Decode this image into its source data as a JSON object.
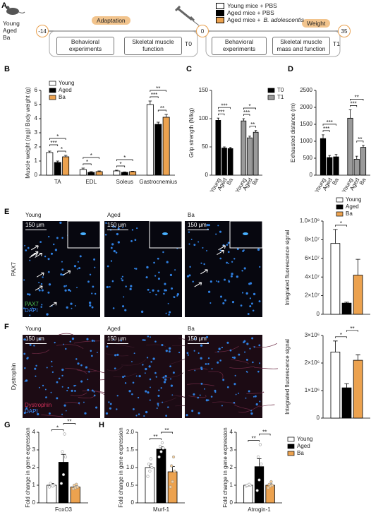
{
  "panel_labels": [
    "A",
    "B",
    "C",
    "D",
    "E",
    "F",
    "G",
    "H"
  ],
  "timeline": {
    "groups": [
      "Young",
      "Aged",
      "Ba"
    ],
    "days": [
      "-14",
      "0",
      "35"
    ],
    "phases": [
      "Adaptation",
      "Weight"
    ],
    "steps": [
      "Behavioral experiments",
      "Skeletal muscle function",
      "Behavioral experiments",
      "Skeletal muscle mass and function"
    ],
    "timepoints": [
      "T0",
      "T1"
    ],
    "legend": [
      {
        "text": "Young mice + PBS",
        "color": "#ffffff"
      },
      {
        "text": "Aged mice + PBS",
        "color": "#000000"
      },
      {
        "text": "Aged mice +",
        "italic": "B. adolescentis",
        "color": "#eca24f"
      }
    ]
  },
  "images": {
    "columns": [
      "Young",
      "Aged",
      "Ba"
    ],
    "scale": "150 μm",
    "rows": [
      {
        "label": "PAX7",
        "channels": [
          "PAX7",
          "DAPI"
        ]
      },
      {
        "label": "Dystrophin",
        "channels": [
          "Dystrophin",
          "DAPI"
        ]
      }
    ]
  },
  "chart_data": [
    {
      "type": "bar",
      "ylabel": "Muscle weight (mg)/ Body weight (g)",
      "categories": [
        "TA",
        "EDL",
        "Soleus",
        "Gastrocnemius"
      ],
      "series": [
        {
          "name": "Young",
          "color": "#ffffff",
          "values": [
            1.6,
            0.4,
            0.3,
            5.0
          ],
          "errors": [
            0.1,
            0.1,
            0.05,
            0.25
          ]
        },
        {
          "name": "Aged",
          "color": "#000000",
          "values": [
            0.9,
            0.2,
            0.2,
            3.6
          ],
          "errors": [
            0.1,
            0.05,
            0.03,
            0.15
          ]
        },
        {
          "name": "Ba",
          "color": "#eca24f",
          "values": [
            1.3,
            0.25,
            0.25,
            4.1
          ],
          "errors": [
            0.1,
            0.05,
            0.03,
            0.2
          ]
        }
      ],
      "ylim": [
        0,
        6
      ],
      "yticks": [
        0,
        1,
        2,
        3,
        4,
        5,
        6
      ],
      "legend": "upper left",
      "significance": [
        {
          "label": "*",
          "from": [
            "Aged",
            "TA"
          ],
          "to": [
            "Ba",
            "TA"
          ]
        },
        {
          "label": "***",
          "from": [
            "Young",
            "TA"
          ],
          "to": [
            "Aged",
            "TA"
          ]
        },
        {
          "label": "*",
          "from": [
            "Young",
            "TA"
          ],
          "to": [
            "Ba",
            "TA"
          ]
        },
        {
          "label": "*",
          "from": [
            "Young",
            "EDL"
          ],
          "to": [
            "Aged",
            "EDL"
          ]
        },
        {
          "label": "*",
          "from": [
            "Young",
            "EDL"
          ],
          "to": [
            "Ba",
            "EDL"
          ]
        },
        {
          "label": "*",
          "from": [
            "Young",
            "Soleus"
          ],
          "to": [
            "Aged",
            "Soleus"
          ]
        },
        {
          "label": "*",
          "from": [
            "Young",
            "Soleus"
          ],
          "to": [
            "Ba",
            "Soleus"
          ]
        },
        {
          "label": "**",
          "from": [
            "Aged",
            "Gastrocnemius"
          ],
          "to": [
            "Ba",
            "Gastrocnemius"
          ]
        },
        {
          "label": "***",
          "from": [
            "Young",
            "Gastrocnemius"
          ],
          "to": [
            "Aged",
            "Gastrocnemius"
          ]
        },
        {
          "label": "**",
          "from": [
            "Young",
            "Gastrocnemius"
          ],
          "to": [
            "Ba",
            "Gastrocnemius"
          ]
        }
      ]
    },
    {
      "type": "bar",
      "ylabel": "Grip strength (N/kg)",
      "categories": [
        "Young",
        "Aged",
        "Ba"
      ],
      "series": [
        {
          "name": "T0",
          "color": "#000000",
          "values": [
            97,
            48,
            47
          ],
          "errors": [
            4,
            2,
            2
          ]
        },
        {
          "name": "T1",
          "color": "#9a9a9a",
          "values": [
            96,
            66,
            76
          ],
          "errors": [
            4,
            3,
            3
          ]
        }
      ],
      "ylim": [
        0,
        150
      ],
      "yticks": [
        0,
        50,
        100,
        150
      ],
      "legend": "upper right",
      "significance": [
        {
          "label": "***",
          "from": [
            "T0",
            "Young"
          ],
          "to": [
            "T0",
            "Aged"
          ]
        },
        {
          "label": "***",
          "from": [
            "T0",
            "Young"
          ],
          "to": [
            "T0",
            "Ba"
          ]
        },
        {
          "label": "**",
          "from": [
            "T1",
            "Aged"
          ],
          "to": [
            "T1",
            "Ba"
          ]
        },
        {
          "label": "***",
          "from": [
            "T1",
            "Young"
          ],
          "to": [
            "T1",
            "Aged"
          ]
        },
        {
          "label": "*",
          "from": [
            "T1",
            "Young"
          ],
          "to": [
            "T1",
            "Ba"
          ]
        }
      ]
    },
    {
      "type": "bar",
      "ylabel": "Exhausted distance (m)",
      "categories": [
        "Young",
        "Aged",
        "Ba"
      ],
      "series": [
        {
          "name": "T0",
          "color": "#000000",
          "values": [
            1080,
            520,
            540
          ],
          "errors": [
            110,
            60,
            70
          ]
        },
        {
          "name": "T1",
          "color": "#9a9a9a",
          "values": [
            1680,
            470,
            820
          ],
          "errors": [
            250,
            90,
            60
          ]
        }
      ],
      "ylim": [
        0,
        2500
      ],
      "yticks": [
        0,
        500,
        1000,
        1500,
        2000,
        2500
      ],
      "significance": [
        {
          "label": "***",
          "from": [
            "T0",
            "Young"
          ],
          "to": [
            "T0",
            "Aged"
          ]
        },
        {
          "label": "***",
          "from": [
            "T0",
            "Young"
          ],
          "to": [
            "T0",
            "Ba"
          ]
        },
        {
          "label": "**",
          "from": [
            "T1",
            "Aged"
          ],
          "to": [
            "T1",
            "Ba"
          ]
        },
        {
          "label": "***",
          "from": [
            "T1",
            "Young"
          ],
          "to": [
            "T1",
            "Aged"
          ]
        },
        {
          "label": "**",
          "from": [
            "T1",
            "Young"
          ],
          "to": [
            "T1",
            "Ba"
          ]
        }
      ]
    },
    {
      "type": "bar",
      "ylabel": "Integrated fluorescence signal",
      "categories": [
        null
      ],
      "series": [
        {
          "name": "Young",
          "color": "#ffffff",
          "values": [
            76000000
          ],
          "errors": [
            15000000
          ]
        },
        {
          "name": "Aged",
          "color": "#000000",
          "values": [
            12000000
          ],
          "errors": [
            1000000
          ]
        },
        {
          "name": "Ba",
          "color": "#eca24f",
          "values": [
            42000000
          ],
          "errors": [
            17000000
          ]
        }
      ],
      "ylim": [
        0,
        100000000
      ],
      "yticks": [
        0,
        {
          "value": 20000000,
          "label": "2×10⁷"
        },
        {
          "value": 40000000,
          "label": "4×10⁷"
        },
        {
          "value": 60000000,
          "label": "6×10⁷"
        },
        {
          "value": 80000000,
          "label": "8×10⁷"
        },
        {
          "value": 100000000,
          "label": "1.0×10⁸"
        }
      ],
      "legend": "top",
      "significance": [
        {
          "label": "*",
          "from": [
            "Young",
            null
          ],
          "to": [
            "Aged",
            null
          ]
        }
      ]
    },
    {
      "type": "bar",
      "ylabel": "Integrated fluorescence signal",
      "categories": [
        null
      ],
      "series": [
        {
          "name": "Young",
          "color": "#ffffff",
          "values": [
            2400000
          ],
          "errors": [
            400000
          ]
        },
        {
          "name": "Aged",
          "color": "#000000",
          "values": [
            1100000
          ],
          "errors": [
            150000
          ]
        },
        {
          "name": "Ba",
          "color": "#eca24f",
          "values": [
            2100000
          ],
          "errors": [
            200000
          ]
        }
      ],
      "ylim": [
        0,
        3000000
      ],
      "yticks": [
        0,
        {
          "value": 1000000,
          "label": "1×10⁶"
        },
        {
          "value": 2000000,
          "label": "2×10⁶"
        },
        {
          "value": 3000000,
          "label": "3×10⁶"
        }
      ],
      "significance": [
        {
          "label": "*",
          "from": [
            "Young",
            null
          ],
          "to": [
            "Aged",
            null
          ]
        },
        {
          "label": "**",
          "from": [
            "Aged",
            null
          ],
          "to": [
            "Ba",
            null
          ]
        }
      ]
    },
    {
      "type": "bar",
      "ylabel": "Fold change in gene expression",
      "categories": [
        "FoxO3"
      ],
      "series": [
        {
          "name": "Young",
          "color": "#ffffff",
          "values": [
            1.0
          ],
          "errors": [
            0.1
          ],
          "points": [
            0.9,
            1.0,
            1.0,
            1.1,
            0.95
          ]
        },
        {
          "name": "Aged",
          "color": "#000000",
          "values": [
            2.3
          ],
          "errors": [
            0.45
          ],
          "points": [
            1.1,
            1.6,
            2.6,
            2.9,
            3.9
          ]
        },
        {
          "name": "Ba",
          "color": "#eca24f",
          "values": [
            0.9
          ],
          "errors": [
            0.08
          ],
          "points": [
            0.8,
            0.85,
            0.9,
            1.0,
            1.05
          ]
        }
      ],
      "ylim": [
        0,
        4
      ],
      "yticks": [
        0,
        1,
        2,
        3,
        4
      ],
      "significance": [
        {
          "label": "*",
          "from": [
            "Young",
            "FoxO3"
          ],
          "to": [
            "Aged",
            "FoxO3"
          ]
        },
        {
          "label": "**",
          "from": [
            "Aged",
            "FoxO3"
          ],
          "to": [
            "Ba",
            "FoxO3"
          ]
        }
      ]
    },
    {
      "type": "bar",
      "ylabel": "Fold change in gene expression",
      "categories": [
        "Murf-1"
      ],
      "series": [
        {
          "name": "Young",
          "color": "#ffffff",
          "values": [
            1.0
          ],
          "errors": [
            0.1
          ],
          "points": [
            0.75,
            0.9,
            1.0,
            1.1,
            1.25
          ]
        },
        {
          "name": "Aged",
          "color": "#000000",
          "values": [
            1.52
          ],
          "errors": [
            0.07
          ],
          "points": [
            1.3,
            1.45,
            1.55,
            1.6,
            1.7
          ]
        },
        {
          "name": "Ba",
          "color": "#eca24f",
          "values": [
            0.88
          ],
          "errors": [
            0.15
          ],
          "points": [
            0.45,
            0.6,
            0.9,
            1.05,
            1.3
          ]
        }
      ],
      "ylim": [
        0,
        2
      ],
      "yticks": [
        0,
        0.5,
        {
          "value": 1,
          "label": "1.0"
        },
        1.5,
        {
          "value": 2,
          "label": "2.0"
        }
      ],
      "significance": [
        {
          "label": "**",
          "from": [
            "Young",
            "Murf-1"
          ],
          "to": [
            "Aged",
            "Murf-1"
          ]
        },
        {
          "label": "**",
          "from": [
            "Aged",
            "Murf-1"
          ],
          "to": [
            "Ba",
            "Murf-1"
          ]
        }
      ]
    },
    {
      "type": "bar",
      "ylabel": "Fold change in gene expression",
      "categories": [
        "Atrogin-1"
      ],
      "series": [
        {
          "name": "Young",
          "color": "#ffffff",
          "values": [
            1.0
          ],
          "errors": [
            0.05
          ],
          "points": [
            0.95,
            1.0,
            1.0,
            1.0,
            1.05
          ]
        },
        {
          "name": "Aged",
          "color": "#000000",
          "values": [
            2.05
          ],
          "errors": [
            0.45
          ],
          "points": [
            0.7,
            1.3,
            2.2,
            2.6,
            3.3
          ]
        },
        {
          "name": "Ba",
          "color": "#eca24f",
          "values": [
            1.0
          ],
          "errors": [
            0.08
          ],
          "points": [
            0.85,
            0.95,
            1.0,
            1.05,
            1.2
          ]
        }
      ],
      "ylim": [
        0,
        4
      ],
      "yticks": [
        0,
        1,
        2,
        3,
        4
      ],
      "legend": "right",
      "significance": [
        {
          "label": "**",
          "from": [
            "Young",
            "Atrogin-1"
          ],
          "to": [
            "Aged",
            "Atrogin-1"
          ]
        },
        {
          "label": "**",
          "from": [
            "Aged",
            "Atrogin-1"
          ],
          "to": [
            "Ba",
            "Atrogin-1"
          ]
        }
      ]
    }
  ]
}
